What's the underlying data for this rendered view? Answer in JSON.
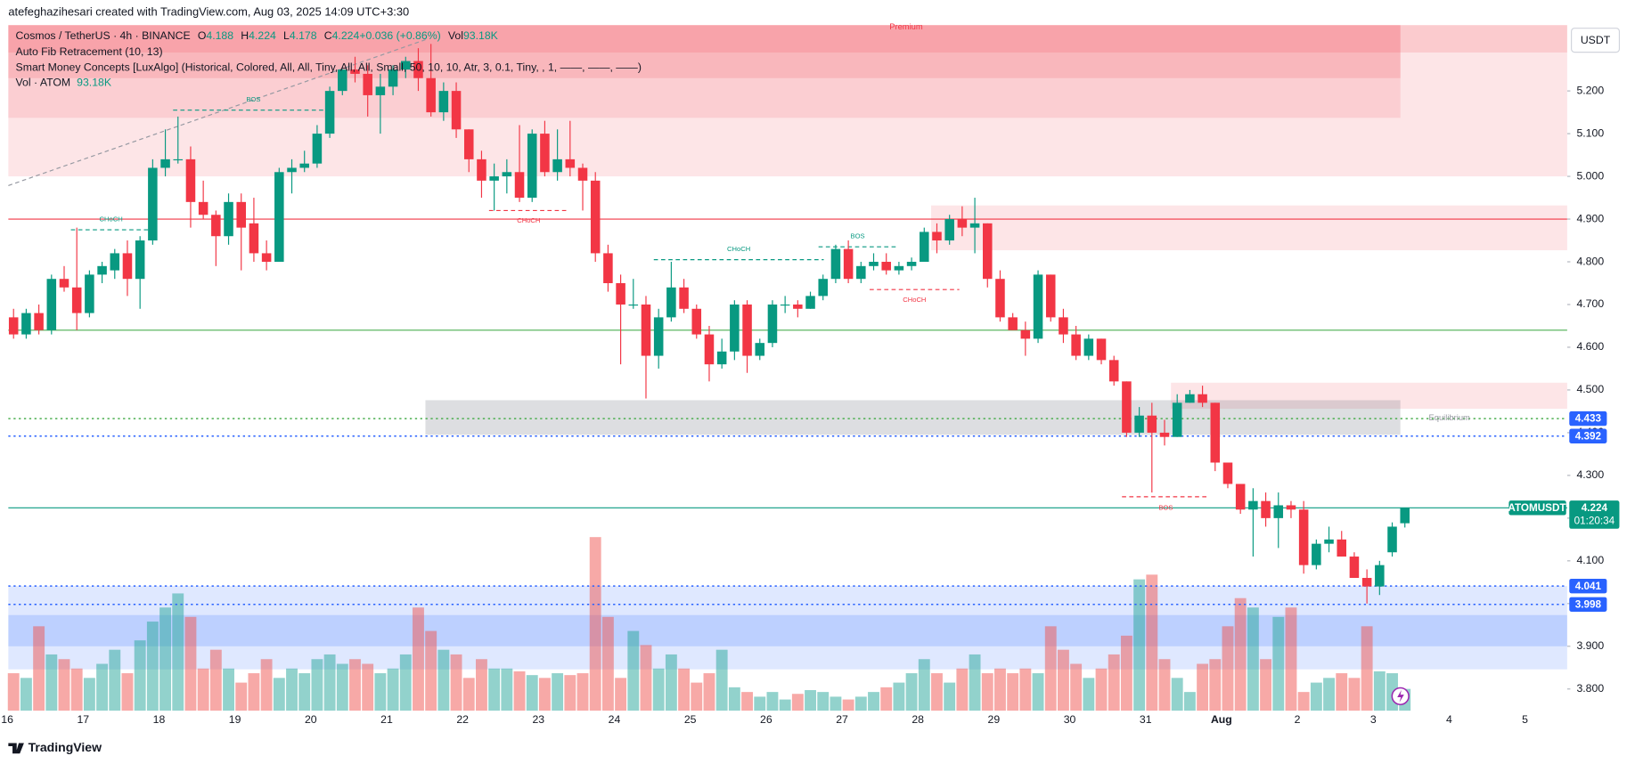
{
  "header": {
    "credit": "atefeghazihesari created with TradingView.com, Aug 03, 2025 14:09 UTC+3:30",
    "symbol": "Cosmos / TetherUS · 4h · BINANCE",
    "legend_items": [
      {
        "key": "O",
        "value": "4.188"
      },
      {
        "key": "H",
        "value": "4.224"
      },
      {
        "key": "L",
        "value": "4.178"
      },
      {
        "key": "C",
        "value": "4.224"
      },
      {
        "key": "",
        "value": "+0.036 (+0.86%)"
      },
      {
        "key": "Vol",
        "value": "93.18K"
      }
    ],
    "indicators": [
      "Auto Fib Retracement (10, 13)",
      "Smart Money Concepts [LuxAlgo] (Historical, Colored, All, All, Tiny, All, All, Small, 50, 10, 10, Atr, 3, 0.1, Tiny, , 1, ——, ——, ——)"
    ],
    "volume_legend": {
      "name": "Vol · ATOM",
      "value": "93.18K"
    }
  },
  "footer": "TradingView",
  "chart_data": {
    "type": "candlestick",
    "currency": "USDT",
    "symbol_tag": "ATOMUSDT",
    "countdown": "01:20:34",
    "last_price": 4.224,
    "ylim": [
      3.749,
      5.359
    ],
    "yticks": [
      {
        "value": 3.8,
        "label": "3.800"
      },
      {
        "value": 3.9,
        "label": "3.900"
      },
      {
        "value": 4.0,
        "label": "4.000"
      },
      {
        "value": 4.1,
        "label": "4.100"
      },
      {
        "value": 4.2,
        "label": "4.200"
      },
      {
        "value": 4.3,
        "label": "4.300"
      },
      {
        "value": 4.4,
        "label": "4.400"
      },
      {
        "value": 4.5,
        "label": "4.500"
      },
      {
        "value": 4.6,
        "label": "4.600"
      },
      {
        "value": 4.7,
        "label": "4.700"
      },
      {
        "value": 4.8,
        "label": "4.800"
      },
      {
        "value": 4.9,
        "label": "4.900"
      },
      {
        "value": 5.0,
        "label": "5.000"
      },
      {
        "value": 5.1,
        "label": "5.100"
      },
      {
        "value": 5.2,
        "label": "5.200"
      }
    ],
    "xticks": [
      "16",
      "17",
      "18",
      "19",
      "20",
      "21",
      "22",
      "23",
      "24",
      "25",
      "26",
      "27",
      "28",
      "29",
      "30",
      "31",
      "Aug",
      "2",
      "3",
      "4",
      "5"
    ],
    "up_color": "#089981",
    "down_color": "#f23645",
    "candles": {
      "open": [
        4.67,
        4.63,
        4.68,
        4.64,
        4.76,
        4.74,
        4.68,
        4.77,
        4.78,
        4.82,
        4.76,
        4.85,
        5.02,
        5.04,
        5.04,
        4.94,
        4.91,
        4.86,
        4.94,
        4.89,
        4.82,
        4.8,
        5.01,
        5.02,
        5.03,
        5.1,
        5.2,
        5.25,
        5.24,
        5.19,
        5.21,
        5.25,
        5.27,
        5.23,
        5.15,
        5.2,
        5.11,
        5.04,
        4.99,
        5.0,
        5.01,
        4.95,
        5.1,
        5.01,
        5.04,
        5.02,
        4.99,
        4.82,
        4.75,
        4.7,
        4.7,
        4.58,
        4.67,
        4.74,
        4.69,
        4.63,
        4.56,
        4.59,
        4.7,
        4.58,
        4.61,
        4.7,
        4.7,
        4.69,
        4.72,
        4.76,
        4.83,
        4.76,
        4.79,
        4.8,
        4.78,
        4.79,
        4.8,
        4.87,
        4.85,
        4.9,
        4.88,
        4.89,
        4.76,
        4.67,
        4.64,
        4.62,
        4.77,
        4.67,
        4.63,
        4.58,
        4.62,
        4.57,
        4.52,
        4.4,
        4.44,
        4.4,
        4.39,
        4.47,
        4.49,
        4.47,
        4.33,
        4.28,
        4.22,
        4.24,
        4.2,
        4.23,
        4.22,
        4.09,
        4.14,
        4.15,
        4.11,
        4.06,
        4.04,
        4.12,
        4.188
      ],
      "high": [
        4.69,
        4.69,
        4.7,
        4.77,
        4.79,
        4.88,
        4.78,
        4.8,
        4.83,
        4.85,
        4.86,
        5.04,
        5.11,
        5.14,
        5.07,
        4.99,
        4.92,
        4.96,
        4.96,
        4.95,
        4.85,
        5.02,
        5.04,
        5.06,
        5.12,
        5.21,
        5.25,
        5.28,
        5.26,
        5.24,
        5.26,
        5.28,
        5.3,
        5.31,
        5.22,
        5.22,
        5.11,
        5.06,
        5.03,
        5.04,
        5.12,
        5.11,
        5.13,
        5.11,
        5.13,
        5.03,
        5.01,
        4.84,
        4.77,
        4.76,
        4.72,
        4.69,
        4.8,
        4.76,
        4.7,
        4.65,
        4.62,
        4.71,
        4.71,
        4.62,
        4.71,
        4.72,
        4.71,
        4.73,
        4.77,
        4.84,
        4.85,
        4.8,
        4.82,
        4.82,
        4.8,
        4.81,
        4.88,
        4.89,
        4.91,
        4.93,
        4.95,
        4.89,
        4.78,
        4.68,
        4.66,
        4.78,
        4.77,
        4.69,
        4.65,
        4.63,
        4.62,
        4.58,
        4.52,
        4.46,
        4.47,
        4.43,
        4.49,
        4.5,
        4.51,
        4.47,
        4.33,
        4.28,
        4.27,
        4.26,
        4.26,
        4.24,
        4.24,
        4.15,
        4.18,
        4.17,
        4.12,
        4.08,
        4.1,
        4.19,
        4.224
      ],
      "low": [
        4.62,
        4.62,
        4.63,
        4.63,
        4.73,
        4.64,
        4.67,
        4.75,
        4.76,
        4.72,
        4.69,
        4.84,
        5.0,
        5.03,
        4.88,
        4.9,
        4.79,
        4.84,
        4.78,
        4.8,
        4.78,
        4.8,
        4.96,
        5.01,
        5.02,
        5.09,
        5.19,
        5.22,
        5.14,
        5.1,
        5.19,
        5.23,
        5.2,
        5.14,
        5.13,
        5.09,
        5.01,
        4.95,
        4.92,
        4.96,
        4.94,
        4.94,
        5.0,
        4.99,
        5.0,
        4.92,
        4.8,
        4.73,
        4.56,
        4.69,
        4.48,
        4.55,
        4.66,
        4.68,
        4.62,
        4.52,
        4.55,
        4.57,
        4.54,
        4.57,
        4.6,
        4.68,
        4.67,
        4.69,
        4.71,
        4.75,
        4.75,
        4.75,
        4.78,
        4.77,
        4.77,
        4.78,
        4.8,
        4.82,
        4.84,
        4.86,
        4.82,
        4.74,
        4.66,
        4.64,
        4.58,
        4.61,
        4.66,
        4.61,
        4.57,
        4.57,
        4.56,
        4.51,
        4.39,
        4.39,
        4.26,
        4.37,
        4.39,
        4.47,
        4.46,
        4.31,
        4.27,
        4.21,
        4.11,
        4.18,
        4.13,
        4.2,
        4.07,
        4.08,
        4.12,
        4.11,
        4.06,
        4.0,
        4.02,
        4.11,
        4.178
      ],
      "close": [
        4.63,
        4.68,
        4.64,
        4.76,
        4.74,
        4.68,
        4.77,
        4.79,
        4.82,
        4.76,
        4.85,
        5.02,
        5.04,
        5.04,
        4.94,
        4.91,
        4.86,
        4.94,
        4.88,
        4.82,
        4.8,
        5.01,
        5.02,
        5.03,
        5.1,
        5.2,
        5.25,
        5.24,
        5.19,
        5.21,
        5.25,
        5.27,
        5.23,
        5.15,
        5.2,
        5.11,
        5.04,
        4.99,
        5.0,
        5.01,
        4.95,
        5.1,
        5.01,
        5.04,
        5.02,
        4.99,
        4.82,
        4.75,
        4.7,
        4.7,
        4.58,
        4.67,
        4.74,
        4.69,
        4.63,
        4.56,
        4.59,
        4.7,
        4.58,
        4.61,
        4.7,
        4.7,
        4.69,
        4.72,
        4.76,
        4.83,
        4.76,
        4.79,
        4.8,
        4.78,
        4.79,
        4.8,
        4.87,
        4.85,
        4.9,
        4.88,
        4.89,
        4.76,
        4.67,
        4.64,
        4.62,
        4.77,
        4.67,
        4.63,
        4.58,
        4.62,
        4.57,
        4.52,
        4.4,
        4.44,
        4.4,
        4.39,
        4.47,
        4.49,
        4.47,
        4.33,
        4.28,
        4.22,
        4.24,
        4.2,
        4.23,
        4.22,
        4.09,
        4.14,
        4.15,
        4.11,
        4.06,
        4.04,
        4.09,
        4.18,
        4.224
      ]
    },
    "volume": [
      160,
      140,
      360,
      240,
      220,
      180,
      140,
      200,
      260,
      160,
      300,
      380,
      440,
      500,
      400,
      180,
      260,
      180,
      120,
      160,
      220,
      140,
      180,
      160,
      220,
      240,
      200,
      220,
      200,
      160,
      180,
      240,
      440,
      340,
      260,
      240,
      140,
      220,
      180,
      180,
      168,
      152,
      140,
      160,
      152,
      160,
      740,
      400,
      140,
      340,
      280,
      180,
      240,
      180,
      120,
      160,
      260,
      100,
      80,
      60,
      80,
      48,
      72,
      88,
      80,
      60,
      48,
      60,
      80,
      100,
      120,
      160,
      220,
      160,
      120,
      180,
      240,
      160,
      180,
      160,
      180,
      160,
      360,
      260,
      200,
      140,
      180,
      240,
      320,
      560,
      580,
      220,
      140,
      80,
      200,
      220,
      360,
      480,
      440,
      220,
      400,
      440,
      80,
      120,
      140,
      160,
      140,
      360,
      168,
      160,
      93.18
    ],
    "zones": [
      {
        "from": 5.0,
        "to": 5.354,
        "color": "rgba(242,54,69,0.13)"
      },
      {
        "from": 5.137,
        "to": 5.354,
        "color": "rgba(242,54,69,0.13)"
      },
      {
        "from": 5.23,
        "to": 5.354,
        "color": "rgba(242,54,69,0.15)"
      },
      {
        "from": 5.29,
        "to": 5.354,
        "color": "rgba(242,54,69,0.15)"
      },
      {
        "from": 4.827,
        "to": 4.932,
        "color": "rgba(242,54,69,0.13)"
      },
      {
        "from": 4.456,
        "to": 4.517,
        "color": "rgba(242,54,69,0.13)"
      },
      {
        "from": 4.395,
        "to": 4.476,
        "color": "rgba(120,123,134,0.25)"
      },
      {
        "from": 3.846,
        "to": 4.041,
        "color": "rgba(41,98,255,0.15)"
      },
      {
        "from": 3.9,
        "to": 3.973,
        "color": "rgba(41,98,255,0.18)"
      }
    ],
    "annotations": [
      "Premium",
      "Equilibrium"
    ],
    "lines": [
      {
        "value": 4.9,
        "color": "#f23645"
      },
      {
        "value": 4.64,
        "color": "#4caf50"
      }
    ],
    "levels": [
      {
        "value": 4.433,
        "color": "#4caf50"
      },
      {
        "value": 4.392,
        "color": "#2962ff"
      },
      {
        "value": 4.041,
        "color": "#2962ff"
      },
      {
        "value": 3.998,
        "color": "#2962ff"
      }
    ],
    "structures": [
      {
        "label": "BOS",
        "price": 5.155,
        "color": "#089981"
      },
      {
        "label": "CHoCH",
        "price": 4.875,
        "color": "#089981"
      },
      {
        "label": "CHoCH",
        "price": 4.92,
        "color": "#f23645"
      },
      {
        "label": "CHoCH",
        "price": 4.805,
        "color": "#089981"
      },
      {
        "label": "BOS",
        "price": 4.835,
        "color": "#089981"
      },
      {
        "label": "CHoCH",
        "price": 4.735,
        "color": "#f23645"
      },
      {
        "label": "BOS",
        "price": 4.25,
        "color": "#f23645"
      }
    ]
  }
}
